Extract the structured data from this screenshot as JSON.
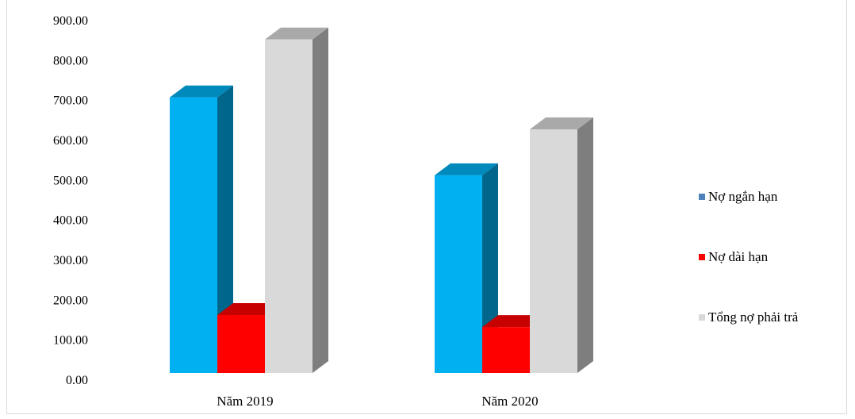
{
  "chart_data": {
    "type": "bar",
    "style": "3d-clustered-column",
    "categories": [
      "Năm 2019",
      "Năm 2020"
    ],
    "series": [
      {
        "name": "Nợ ngắn hạn",
        "values": [
          690,
          495
        ],
        "color": "#00b0f0",
        "legend_color": "#4f81bd"
      },
      {
        "name": "Nợ dài hạn",
        "values": [
          145,
          115
        ],
        "color": "#ff0000",
        "legend_color": "#ff0000"
      },
      {
        "name": "Tổng nợ phải trả",
        "values": [
          835,
          610
        ],
        "color": "#d9d9d9",
        "legend_color": "#d9d9d9"
      }
    ],
    "y_ticks": [
      "0.00",
      "100.00",
      "200.00",
      "300.00",
      "400.00",
      "500.00",
      "600.00",
      "700.00",
      "800.00",
      "900.00"
    ],
    "ylim": [
      0,
      900
    ],
    "grid": false,
    "legend_position": "right"
  }
}
